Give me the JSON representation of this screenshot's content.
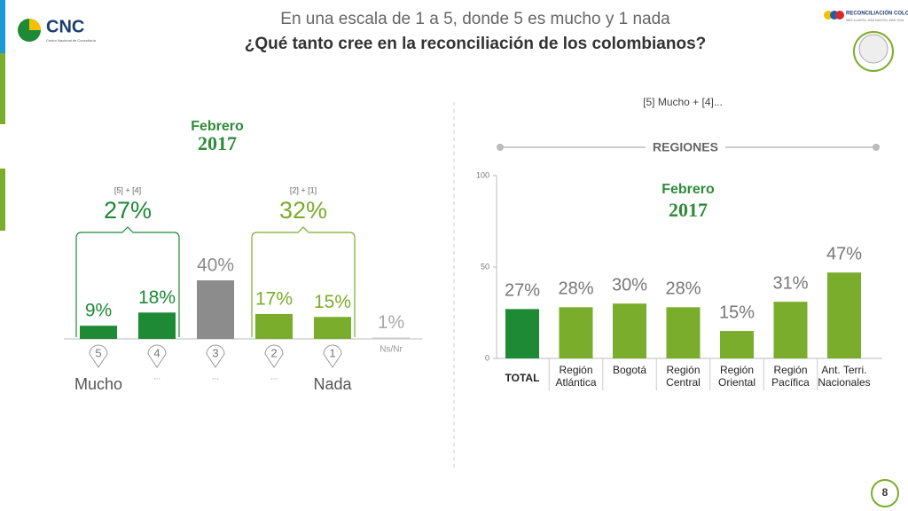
{
  "header": {
    "title": "En una escala de 1 a 5, donde 5 es mucho y 1 nada",
    "question": "¿Qué tanto cree en la reconciliación de los colombianos?"
  },
  "logo": {
    "name": "CNC",
    "subtitle": "Centro Nacional de Consultoría"
  },
  "brand": {
    "name": "RECONCILIACIÓN COLOMBIA",
    "tagline": "MÁS ILUSIÓN, MÁS NACIÓN, MÁS VIDA"
  },
  "page_number": "8",
  "chart_data": [
    {
      "type": "bar",
      "title": "Febrero",
      "subtitle": "2017",
      "categories": [
        "Mucho",
        "...",
        "...",
        "...",
        "Nada",
        "Ns/Nr"
      ],
      "codes": [
        "5",
        "4",
        "3",
        "2",
        "1"
      ],
      "values": [
        9,
        18,
        40,
        17,
        15,
        1
      ],
      "value_labels": [
        "9%",
        "18%",
        "40%",
        "17%",
        "15%",
        "1%"
      ],
      "colors": [
        "#1e8a36",
        "#1e8a36",
        "#8c8c8c",
        "#7aad2b",
        "#7aad2b",
        "#cfcfcf"
      ],
      "groups": [
        {
          "label": "[5] + [4]",
          "value": 27,
          "value_label": "27%",
          "color": "#1e8a36"
        },
        {
          "label": "[2] + [1]",
          "value": 32,
          "value_label": "32%",
          "color": "#7aad2b"
        }
      ]
    },
    {
      "type": "bar",
      "title": "REGIONES",
      "subtitle": "[5] Mucho + [4]...",
      "annotation": "Febrero",
      "annotation_year": "2017",
      "categories": [
        "TOTAL",
        "Región Atlántica",
        "Bogotá",
        "Región Central",
        "Región Oriental",
        "Región Pacífica",
        "Ant. Terri. Nacionales"
      ],
      "values": [
        27,
        28,
        30,
        28,
        15,
        31,
        47
      ],
      "value_labels": [
        "27%",
        "28%",
        "30%",
        "28%",
        "15%",
        "31%",
        "47%"
      ],
      "colors": [
        "#1e8a36",
        "#7aad2b",
        "#7aad2b",
        "#7aad2b",
        "#7aad2b",
        "#7aad2b",
        "#7aad2b"
      ],
      "ylim": [
        0,
        100
      ],
      "yticks": [
        0,
        50,
        100
      ]
    }
  ]
}
